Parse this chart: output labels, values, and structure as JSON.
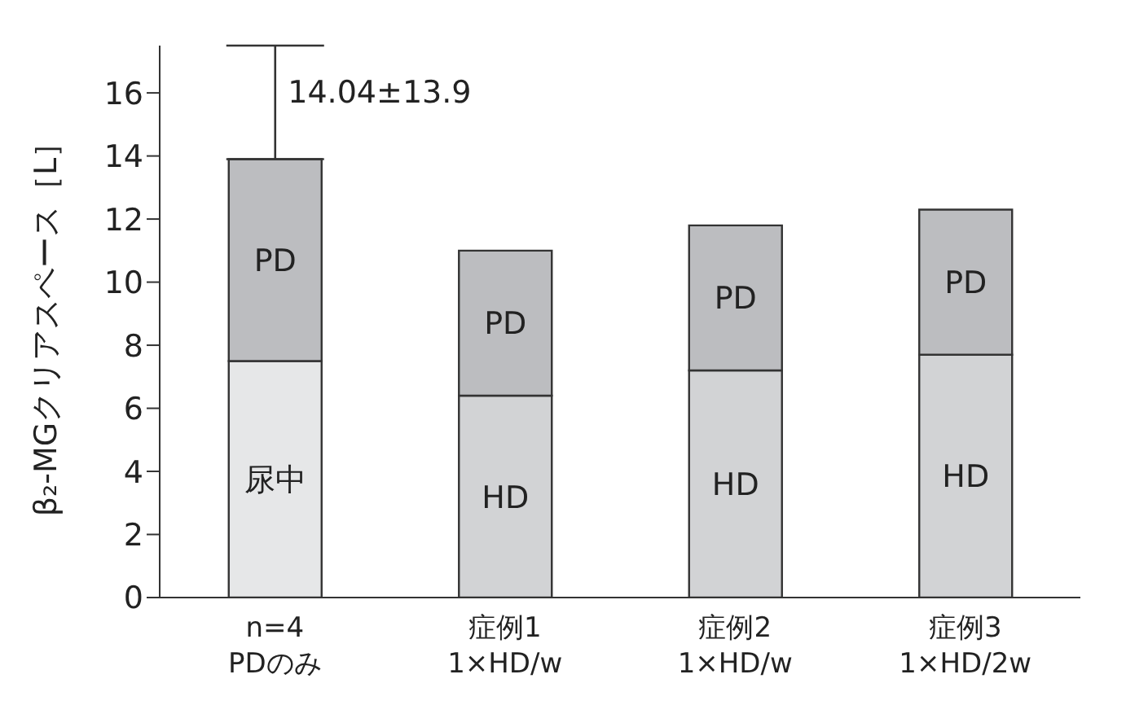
{
  "chart_data": {
    "type": "bar",
    "stacked": true,
    "ylabel": "β₂-MGクリアスペース［L］",
    "categories": [
      "n=4\nPDのみ",
      "症例1\n1×HD/w",
      "症例2\n1×HD/w",
      "症例3\n1×HD/2w"
    ],
    "series": [
      {
        "colors": [
          "#e6e7e8",
          "#d2d3d5",
          "#d2d3d5",
          "#d2d3d5"
        ],
        "values": [
          7.5,
          6.4,
          7.2,
          7.7
        ],
        "value_labels": [
          "尿中",
          "HD",
          "HD",
          "HD"
        ]
      },
      {
        "color": "#bcbdc0",
        "values": [
          6.4,
          4.6,
          4.6,
          4.6
        ],
        "errors": [
          [
            13.9,
            17.5
          ],
          null,
          null,
          null
        ],
        "value_labels": [
          "PD",
          "PD",
          "PD",
          "PD"
        ]
      }
    ],
    "ylim": [
      0,
      17.5
    ],
    "yticks": [
      0,
      2,
      4,
      6,
      8,
      10,
      12,
      14,
      16
    ],
    "grid": false,
    "legend": false,
    "annotations": [
      {
        "text": "14.04±13.9",
        "x": "n=4\nPDのみ",
        "y": 13.9
      }
    ]
  }
}
